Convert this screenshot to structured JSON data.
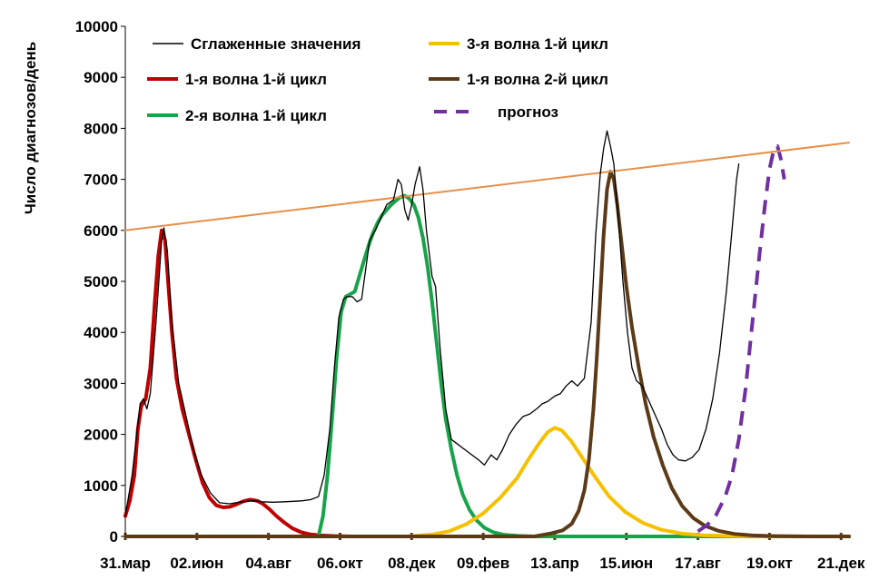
{
  "chart_data": {
    "type": "line",
    "ylabel": "Число диагнозов/день",
    "ylim": [
      0,
      10000
    ],
    "yticks": [
      "0",
      "1000",
      "2000",
      "3000",
      "4000",
      "5000",
      "6000",
      "7000",
      "8000",
      "9000",
      "10000"
    ],
    "xlim": [
      0,
      637
    ],
    "xticks": [
      {
        "label": "31.мар",
        "x": 0
      },
      {
        "label": "02.июн",
        "x": 63
      },
      {
        "label": "04.авг",
        "x": 126
      },
      {
        "label": "06.окт",
        "x": 189
      },
      {
        "label": "08.дек",
        "x": 252
      },
      {
        "label": "09.фев",
        "x": 315
      },
      {
        "label": "13.апр",
        "x": 378
      },
      {
        "label": "15.июн",
        "x": 441
      },
      {
        "label": "17.авг",
        "x": 504
      },
      {
        "label": "19.окт",
        "x": 567
      },
      {
        "label": "21.дек",
        "x": 630
      }
    ],
    "legend": {
      "placement": "top",
      "entries": [
        {
          "name": "Сглаженные значения",
          "color": "#000000",
          "style": "solid-thin"
        },
        {
          "name": "1-я волна 1-й цикл",
          "color": "#c00000",
          "style": "solid"
        },
        {
          "name": "2-я волна 1-й цикл",
          "color": "#17a34a",
          "style": "solid"
        },
        {
          "name": "3-я волна 1-й цикл",
          "color": "#f5c000",
          "style": "solid"
        },
        {
          "name": "1-я волна 2-й цикл",
          "color": "#5c3a17",
          "style": "solid"
        },
        {
          "name": "прогноз",
          "color": "#7030a0",
          "style": "dashed"
        }
      ]
    },
    "series": [
      {
        "name": "Сглаженные значения",
        "color": "#000000",
        "points": [
          [
            0,
            400
          ],
          [
            6,
            1200
          ],
          [
            11,
            2200
          ],
          [
            13,
            2600
          ],
          [
            16,
            2700
          ],
          [
            19,
            2500
          ],
          [
            22,
            2800
          ],
          [
            27,
            4200
          ],
          [
            32,
            5800
          ],
          [
            34,
            6050
          ],
          [
            37,
            5600
          ],
          [
            41,
            4200
          ],
          [
            47,
            3000
          ],
          [
            54,
            2300
          ],
          [
            60,
            1700
          ],
          [
            67,
            1200
          ],
          [
            75,
            850
          ],
          [
            83,
            660
          ],
          [
            92,
            640
          ],
          [
            100,
            670
          ],
          [
            108,
            690
          ],
          [
            113,
            700
          ],
          [
            120,
            680
          ],
          [
            130,
            670
          ],
          [
            140,
            680
          ],
          [
            150,
            690
          ],
          [
            156,
            700
          ],
          [
            163,
            720
          ],
          [
            170,
            780
          ],
          [
            175,
            1200
          ],
          [
            180,
            2100
          ],
          [
            184,
            3300
          ],
          [
            188,
            4300
          ],
          [
            192,
            4650
          ],
          [
            195,
            4700
          ],
          [
            200,
            4700
          ],
          [
            204,
            4600
          ],
          [
            208,
            4650
          ],
          [
            212,
            5300
          ],
          [
            215,
            5800
          ],
          [
            220,
            6000
          ],
          [
            224,
            6200
          ],
          [
            230,
            6500
          ],
          [
            236,
            6600
          ],
          [
            240,
            7000
          ],
          [
            243,
            6900
          ],
          [
            246,
            6400
          ],
          [
            249,
            6200
          ],
          [
            252,
            6500
          ],
          [
            255,
            6900
          ],
          [
            259,
            7250
          ],
          [
            262,
            6800
          ],
          [
            265,
            6000
          ],
          [
            270,
            5100
          ],
          [
            273,
            4900
          ],
          [
            277,
            3700
          ],
          [
            282,
            2500
          ],
          [
            287,
            1900
          ],
          [
            293,
            1800
          ],
          [
            299,
            1700
          ],
          [
            305,
            1600
          ],
          [
            311,
            1500
          ],
          [
            316,
            1400
          ],
          [
            322,
            1600
          ],
          [
            327,
            1500
          ],
          [
            332,
            1700
          ],
          [
            338,
            2000
          ],
          [
            344,
            2200
          ],
          [
            350,
            2350
          ],
          [
            356,
            2400
          ],
          [
            362,
            2500
          ],
          [
            367,
            2600
          ],
          [
            372,
            2650
          ],
          [
            378,
            2750
          ],
          [
            383,
            2800
          ],
          [
            388,
            2950
          ],
          [
            393,
            3050
          ],
          [
            398,
            2950
          ],
          [
            404,
            3100
          ],
          [
            410,
            4200
          ],
          [
            414,
            5900
          ],
          [
            418,
            7100
          ],
          [
            421,
            7600
          ],
          [
            424,
            7950
          ],
          [
            427,
            7650
          ],
          [
            430,
            7300
          ],
          [
            434,
            6200
          ],
          [
            438,
            5000
          ],
          [
            442,
            4000
          ],
          [
            446,
            3300
          ],
          [
            450,
            3050
          ],
          [
            455,
            2950
          ],
          [
            460,
            2700
          ],
          [
            466,
            2400
          ],
          [
            472,
            2100
          ],
          [
            477,
            1800
          ],
          [
            482,
            1600
          ],
          [
            487,
            1500
          ],
          [
            493,
            1480
          ],
          [
            499,
            1550
          ],
          [
            505,
            1700
          ],
          [
            511,
            2100
          ],
          [
            517,
            2700
          ],
          [
            523,
            3600
          ],
          [
            529,
            4800
          ],
          [
            534,
            6000
          ],
          [
            538,
            7000
          ],
          [
            540,
            7300
          ]
        ]
      },
      {
        "name": "1-я волна 1-й цикл",
        "color": "#c00000",
        "points": [
          [
            0,
            400
          ],
          [
            4,
            700
          ],
          [
            8,
            1200
          ],
          [
            11,
            2100
          ],
          [
            14,
            2550
          ],
          [
            18,
            2700
          ],
          [
            22,
            3300
          ],
          [
            26,
            4600
          ],
          [
            29,
            5500
          ],
          [
            32,
            6000
          ],
          [
            35,
            5800
          ],
          [
            38,
            4900
          ],
          [
            41,
            4000
          ],
          [
            45,
            3100
          ],
          [
            50,
            2500
          ],
          [
            56,
            2000
          ],
          [
            62,
            1500
          ],
          [
            68,
            1050
          ],
          [
            74,
            760
          ],
          [
            80,
            610
          ],
          [
            86,
            570
          ],
          [
            92,
            580
          ],
          [
            98,
            630
          ],
          [
            104,
            690
          ],
          [
            110,
            720
          ],
          [
            116,
            700
          ],
          [
            121,
            640
          ],
          [
            127,
            530
          ],
          [
            133,
            400
          ],
          [
            140,
            270
          ],
          [
            147,
            160
          ],
          [
            155,
            80
          ],
          [
            163,
            40
          ],
          [
            172,
            20
          ],
          [
            185,
            8
          ],
          [
            200,
            0
          ],
          [
            637,
            0
          ]
        ]
      },
      {
        "name": "2-я волна 1-й цикл",
        "color": "#17a34a",
        "points": [
          [
            0,
            0
          ],
          [
            170,
            0
          ],
          [
            174,
            400
          ],
          [
            178,
            1200
          ],
          [
            182,
            2300
          ],
          [
            186,
            3500
          ],
          [
            190,
            4400
          ],
          [
            194,
            4700
          ],
          [
            198,
            4750
          ],
          [
            202,
            4800
          ],
          [
            206,
            5100
          ],
          [
            210,
            5400
          ],
          [
            214,
            5700
          ],
          [
            218,
            5950
          ],
          [
            222,
            6150
          ],
          [
            226,
            6300
          ],
          [
            230,
            6400
          ],
          [
            234,
            6500
          ],
          [
            238,
            6580
          ],
          [
            242,
            6650
          ],
          [
            246,
            6680
          ],
          [
            250,
            6620
          ],
          [
            254,
            6500
          ],
          [
            258,
            6250
          ],
          [
            262,
            5850
          ],
          [
            266,
            5300
          ],
          [
            270,
            4600
          ],
          [
            274,
            3800
          ],
          [
            278,
            3000
          ],
          [
            282,
            2300
          ],
          [
            287,
            1700
          ],
          [
            292,
            1200
          ],
          [
            297,
            820
          ],
          [
            303,
            520
          ],
          [
            309,
            320
          ],
          [
            316,
            170
          ],
          [
            324,
            80
          ],
          [
            334,
            30
          ],
          [
            346,
            10
          ],
          [
            360,
            0
          ],
          [
            637,
            0
          ]
        ]
      },
      {
        "name": "3-я волна 1-й цикл",
        "color": "#f5c000",
        "points": [
          [
            0,
            0
          ],
          [
            250,
            0
          ],
          [
            270,
            40
          ],
          [
            285,
            100
          ],
          [
            300,
            240
          ],
          [
            315,
            450
          ],
          [
            330,
            760
          ],
          [
            345,
            1150
          ],
          [
            355,
            1520
          ],
          [
            365,
            1850
          ],
          [
            372,
            2050
          ],
          [
            378,
            2130
          ],
          [
            384,
            2080
          ],
          [
            392,
            1880
          ],
          [
            402,
            1550
          ],
          [
            414,
            1150
          ],
          [
            426,
            780
          ],
          [
            440,
            480
          ],
          [
            456,
            260
          ],
          [
            472,
            130
          ],
          [
            490,
            55
          ],
          [
            510,
            20
          ],
          [
            540,
            5
          ],
          [
            637,
            0
          ]
        ]
      },
      {
        "name": "1-я волна 2-й цикл",
        "color": "#5c3a17",
        "points": [
          [
            0,
            0
          ],
          [
            360,
            0
          ],
          [
            375,
            60
          ],
          [
            385,
            120
          ],
          [
            393,
            250
          ],
          [
            399,
            500
          ],
          [
            404,
            900
          ],
          [
            408,
            1500
          ],
          [
            412,
            2500
          ],
          [
            415,
            3500
          ],
          [
            418,
            4700
          ],
          [
            421,
            5900
          ],
          [
            424,
            6800
          ],
          [
            427,
            7150
          ],
          [
            430,
            7000
          ],
          [
            433,
            6500
          ],
          [
            437,
            5700
          ],
          [
            441,
            4900
          ],
          [
            446,
            4100
          ],
          [
            452,
            3300
          ],
          [
            458,
            2600
          ],
          [
            465,
            1950
          ],
          [
            473,
            1400
          ],
          [
            481,
            950
          ],
          [
            490,
            600
          ],
          [
            500,
            360
          ],
          [
            510,
            210
          ],
          [
            522,
            110
          ],
          [
            536,
            50
          ],
          [
            552,
            20
          ],
          [
            570,
            8
          ],
          [
            600,
            0
          ],
          [
            637,
            0
          ]
        ]
      },
      {
        "name": "прогноз",
        "color": "#7030a0",
        "dashed": true,
        "points": [
          [
            504,
            100
          ],
          [
            512,
            220
          ],
          [
            520,
            420
          ],
          [
            528,
            780
          ],
          [
            534,
            1200
          ],
          [
            540,
            1900
          ],
          [
            546,
            2900
          ],
          [
            552,
            4200
          ],
          [
            558,
            5500
          ],
          [
            563,
            6500
          ],
          [
            567,
            7200
          ],
          [
            571,
            7600
          ],
          [
            574,
            7650
          ],
          [
            577,
            7400
          ],
          [
            580,
            7000
          ]
        ]
      },
      {
        "name": "",
        "color": "#e5904a",
        "points": [
          [
            0,
            6000
          ],
          [
            637,
            7720
          ]
        ]
      }
    ]
  }
}
